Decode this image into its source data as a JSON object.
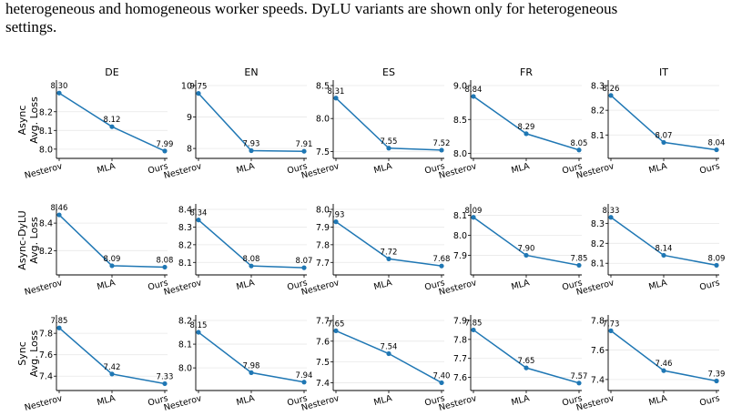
{
  "caption": {
    "line1": "heterogeneous and homogeneous worker speeds. DyLU variants are shown only for heterogeneous",
    "line2": "settings."
  },
  "colors": {
    "line": "#1f77b4",
    "grid": "#e8e8e8",
    "axis": "#000000"
  },
  "chart_data": {
    "type": "line",
    "categories": [
      "Nesterov",
      "MLA",
      "Ours"
    ],
    "columns": [
      "DE",
      "EN",
      "ES",
      "FR",
      "IT"
    ],
    "rows": [
      {
        "label_line1": "Async",
        "label_line2": "Avg. Loss"
      },
      {
        "label_line1": "Async-DyLU",
        "label_line2": "Avg. Loss"
      },
      {
        "label_line1": "Sync",
        "label_line2": "Avg. Loss"
      }
    ],
    "panels": [
      [
        {
          "values": [
            8.3,
            8.12,
            7.99
          ],
          "labels": [
            "8.30",
            "8.12",
            "7.99"
          ],
          "ylim": [
            7.97,
            8.34
          ],
          "yticks": [
            8.0,
            8.1,
            8.2
          ],
          "ytick_labels": [
            "8.0",
            "8.1",
            "8.2"
          ]
        },
        {
          "values": [
            9.75,
            7.93,
            7.91
          ],
          "labels": [
            "9.75",
            "7.93",
            "7.91"
          ],
          "ylim": [
            7.8,
            10.0
          ],
          "yticks": [
            8,
            9,
            10
          ],
          "ytick_labels": [
            "8",
            "9",
            "10"
          ]
        },
        {
          "values": [
            8.31,
            7.55,
            7.52
          ],
          "labels": [
            "8.31",
            "7.55",
            "7.52"
          ],
          "ylim": [
            7.45,
            8.5
          ],
          "yticks": [
            7.5,
            8.0,
            8.5
          ],
          "ytick_labels": [
            "7.5",
            "8.0",
            "8.5"
          ]
        },
        {
          "values": [
            8.84,
            8.29,
            8.05
          ],
          "labels": [
            "8.84",
            "8.29",
            "8.05"
          ],
          "ylim": [
            7.98,
            9.0
          ],
          "yticks": [
            8.0,
            8.5,
            9.0
          ],
          "ytick_labels": [
            "8.0",
            "8.5",
            "9.0"
          ]
        },
        {
          "values": [
            8.26,
            8.07,
            8.04
          ],
          "labels": [
            "8.26",
            "8.07",
            "8.04"
          ],
          "ylim": [
            8.02,
            8.3
          ],
          "yticks": [
            8.1,
            8.2,
            8.3
          ],
          "ytick_labels": [
            "8.1",
            "8.2",
            "8.3"
          ]
        }
      ],
      [
        {
          "values": [
            8.46,
            8.09,
            8.08
          ],
          "labels": [
            "8.46",
            "8.09",
            "8.08"
          ],
          "ylim": [
            8.05,
            8.5
          ],
          "yticks": [
            8.2,
            8.4
          ],
          "ytick_labels": [
            "8.2",
            "8.4"
          ]
        },
        {
          "values": [
            8.34,
            8.08,
            8.07
          ],
          "labels": [
            "8.34",
            "8.08",
            "8.07"
          ],
          "ylim": [
            8.05,
            8.4
          ],
          "yticks": [
            8.1,
            8.2,
            8.3,
            8.4
          ],
          "ytick_labels": [
            "8.1",
            "8.2",
            "8.3",
            "8.4"
          ]
        },
        {
          "values": [
            7.93,
            7.72,
            7.68
          ],
          "labels": [
            "7.93",
            "7.72",
            "7.68"
          ],
          "ylim": [
            7.65,
            8.0
          ],
          "yticks": [
            7.7,
            7.8,
            7.9,
            8.0
          ],
          "ytick_labels": [
            "7.7",
            "7.8",
            "7.9",
            "8.0"
          ]
        },
        {
          "values": [
            8.09,
            7.9,
            7.85
          ],
          "labels": [
            "8.09",
            "7.90",
            "7.85"
          ],
          "ylim": [
            7.82,
            8.13
          ],
          "yticks": [
            7.9,
            8.0,
            8.1
          ],
          "ytick_labels": [
            "7.9",
            "8.0",
            "8.1"
          ]
        },
        {
          "values": [
            8.33,
            8.14,
            8.09
          ],
          "labels": [
            "8.33",
            "8.14",
            "8.09"
          ],
          "ylim": [
            8.06,
            8.37
          ],
          "yticks": [
            8.1,
            8.2,
            8.3
          ],
          "ytick_labels": [
            "8.1",
            "8.2",
            "8.3"
          ]
        }
      ],
      [
        {
          "values": [
            7.85,
            7.42,
            7.33
          ],
          "labels": [
            "7.85",
            "7.42",
            "7.33"
          ],
          "ylim": [
            7.3,
            7.92
          ],
          "yticks": [
            7.4,
            7.6,
            7.8
          ],
          "ytick_labels": [
            "7.4",
            "7.6",
            "7.8"
          ]
        },
        {
          "values": [
            8.15,
            7.98,
            7.94
          ],
          "labels": [
            "8.15",
            "7.98",
            "7.94"
          ],
          "ylim": [
            7.92,
            8.2
          ],
          "yticks": [
            8.0,
            8.1,
            8.2
          ],
          "ytick_labels": [
            "8.0",
            "8.1",
            "8.2"
          ]
        },
        {
          "values": [
            7.65,
            7.54,
            7.4
          ],
          "labels": [
            "7.65",
            "7.54",
            "7.40"
          ],
          "ylim": [
            7.38,
            7.7
          ],
          "yticks": [
            7.4,
            7.5,
            7.6,
            7.7
          ],
          "ytick_labels": [
            "7.4",
            "7.5",
            "7.6",
            "7.7"
          ]
        },
        {
          "values": [
            7.85,
            7.65,
            7.57
          ],
          "labels": [
            "7.85",
            "7.65",
            "7.57"
          ],
          "ylim": [
            7.55,
            7.9
          ],
          "yticks": [
            7.6,
            7.7,
            7.8,
            7.9
          ],
          "ytick_labels": [
            "7.6",
            "7.7",
            "7.8",
            "7.9"
          ]
        },
        {
          "values": [
            7.73,
            7.46,
            7.39
          ],
          "labels": [
            "7.73",
            "7.46",
            "7.39"
          ],
          "ylim": [
            7.35,
            7.8
          ],
          "yticks": [
            7.4,
            7.6,
            7.8
          ],
          "ytick_labels": [
            "7.4",
            "7.6",
            "7.8"
          ]
        }
      ]
    ],
    "grid": true,
    "legend": "none"
  }
}
